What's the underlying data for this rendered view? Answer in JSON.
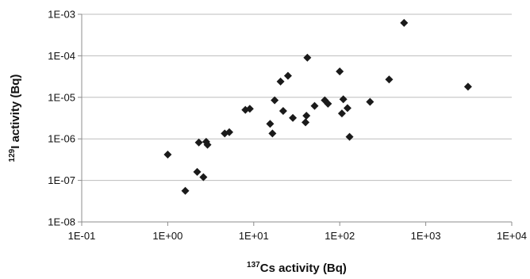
{
  "chart_data": {
    "type": "scatter",
    "title": "",
    "xlabel_sup": "137",
    "xlabel_text": "Cs activity (Bq)",
    "ylabel_sup": "129",
    "ylabel_text": "I activity (Bq)",
    "xscale": "log",
    "yscale": "log",
    "xlim": [
      0.1,
      10000
    ],
    "ylim": [
      1e-08,
      0.001
    ],
    "x_ticks": [
      0.1,
      1,
      10,
      100,
      1000,
      10000
    ],
    "x_tick_labels": [
      "1E-01",
      "1E+00",
      "1E+01",
      "1E+02",
      "1E+03",
      "1E+04"
    ],
    "y_ticks": [
      1e-08,
      1e-07,
      1e-06,
      1e-05,
      0.0001,
      0.001
    ],
    "y_tick_labels": [
      "1E-08",
      "1E-07",
      "1E-06",
      "1E-05",
      "1E-04",
      "1E-03"
    ],
    "grid": "horizontal",
    "legend": "none",
    "marker": "diamond",
    "colors": {
      "marker": "#1a1a1a",
      "grid": "#bdbdbd",
      "axis": "#8c8c8c"
    },
    "series": [
      {
        "points": [
          [
            1.0,
            4.2e-07
          ],
          [
            1.6,
            5.6e-08
          ],
          [
            2.2,
            1.6e-07
          ],
          [
            2.3,
            8.2e-07
          ],
          [
            2.6,
            1.2e-07
          ],
          [
            2.8,
            8.5e-07
          ],
          [
            2.9,
            7.2e-07
          ],
          [
            4.6,
            1.35e-06
          ],
          [
            5.2,
            1.45e-06
          ],
          [
            8.0,
            5e-06
          ],
          [
            9.0,
            5.3e-06
          ],
          [
            15.5,
            2.3e-06
          ],
          [
            16.5,
            1.35e-06
          ],
          [
            17.5,
            8.5e-06
          ],
          [
            20.5,
            2.4e-05
          ],
          [
            22.0,
            4.7e-06
          ],
          [
            25.0,
            3.3e-05
          ],
          [
            28.5,
            3.2e-06
          ],
          [
            40.0,
            2.5e-06
          ],
          [
            41.0,
            3.6e-06
          ],
          [
            42.0,
            9e-05
          ],
          [
            51.0,
            6.2e-06
          ],
          [
            67.0,
            8.5e-06
          ],
          [
            73.0,
            7e-06
          ],
          [
            100.0,
            4.2e-05
          ],
          [
            106.0,
            4.1e-06
          ],
          [
            110.0,
            9e-06
          ],
          [
            123.0,
            5.5e-06
          ],
          [
            130.0,
            1.12e-06
          ],
          [
            225.0,
            7.8e-06
          ],
          [
            375.0,
            2.7e-05
          ],
          [
            560.0,
            0.00062
          ],
          [
            3100.0,
            1.8e-05
          ]
        ]
      }
    ]
  }
}
